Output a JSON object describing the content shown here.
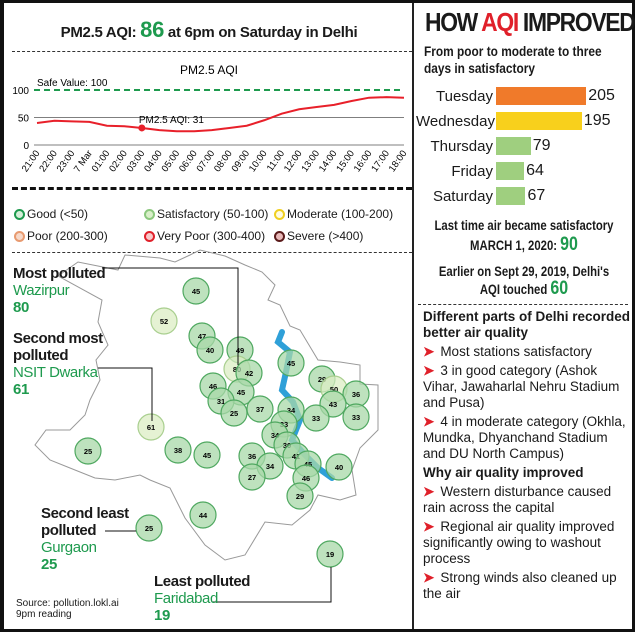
{
  "headline": {
    "prefix": "PM2.5 AQI:",
    "value": "86",
    "suffix": "at 6pm on Saturday in Delhi"
  },
  "chart_data": [
    {
      "type": "line",
      "title": "PM2.5 AQI",
      "ylim": [
        0,
        100
      ],
      "yticks": [
        "0",
        "50",
        "100"
      ],
      "x": [
        "21:00",
        "22:00",
        "23:00",
        "7 Mar",
        "01:00",
        "02:00",
        "03:00",
        "04:00",
        "05:00",
        "06:00",
        "07:00",
        "08:00",
        "09:00",
        "10:00",
        "11:00",
        "12:00",
        "13:00",
        "14:00",
        "15:00",
        "16:00",
        "17:00",
        "18:00"
      ],
      "series": [
        {
          "name": "PM2.5 AQI",
          "values": [
            40,
            44,
            43,
            42,
            35,
            34,
            31,
            27,
            25,
            25,
            27,
            31,
            35,
            45,
            57,
            65,
            69,
            73,
            80,
            86,
            87,
            86
          ],
          "color": "#e8202a"
        }
      ],
      "reference": {
        "label": "Safe Value: 100",
        "value": 100,
        "color": "#1e9a4e"
      },
      "annotation": {
        "label": "PM2.5 AQI: 31",
        "index": 6
      }
    },
    {
      "type": "bar",
      "title": "HOW AQI IMPROVED",
      "categories": [
        "Tuesday",
        "Wednesday",
        "Thursday",
        "Friday",
        "Saturday"
      ],
      "values": [
        205,
        195,
        79,
        64,
        67
      ],
      "colors": [
        "#f07a2a",
        "#f8d01c",
        "#9fcf7f",
        "#9fcf7f",
        "#9fcf7f"
      ]
    }
  ],
  "legend": [
    {
      "label": "Good (<50)",
      "fill": "#d6efd9",
      "stroke": "#1e9a4e"
    },
    {
      "label": "Satisfactory (50-100)",
      "fill": "#d9efc9",
      "stroke": "#8cc87e"
    },
    {
      "label": "Moderate (100-200)",
      "fill": "#fffbe0",
      "stroke": "#f0d020"
    },
    {
      "label": "Poor (200-300)",
      "fill": "#f6d8c8",
      "stroke": "#e89a70"
    },
    {
      "label": "Very Poor (300-400)",
      "fill": "#f8c8c8",
      "stroke": "#e0202a"
    },
    {
      "label": "Severe (>400)",
      "fill": "#e8b8b8",
      "stroke": "#5a1a1a"
    }
  ],
  "map": {
    "stations": [
      45,
      52,
      47,
      40,
      49,
      80,
      42,
      46,
      45,
      31,
      25,
      37,
      45,
      29,
      50,
      36,
      43,
      33,
      34,
      33,
      33,
      34,
      30,
      41,
      36,
      34,
      27,
      45,
      46,
      29,
      40,
      61,
      25,
      38,
      45,
      44,
      25,
      19
    ],
    "callouts": [
      {
        "heading": "Most polluted",
        "name": "Wazirpur",
        "value": "80"
      },
      {
        "heading": "Second most polluted",
        "name": "NSIT Dwarka",
        "value": "61"
      },
      {
        "heading": "Second least polluted",
        "name": "Gurgaon",
        "value": "25"
      },
      {
        "heading": "Least polluted",
        "name": "Faridabad",
        "value": "19"
      }
    ],
    "source": "Source: pollution.lokl.ai",
    "reading": "9pm reading"
  },
  "right": {
    "heading_a": "HOW ",
    "heading_b": "AQI",
    "heading_c": " IMPROVED",
    "heading_accent": "#e0202a",
    "subtitle": "From poor to moderate to three days in satisfactory",
    "last_time": "Last time air became satisfactory",
    "last_date": "MARCH 1, 2020:",
    "last_value": "90",
    "earlier": "Earlier on Sept 29, 2019, Delhi's",
    "earlier2": "AQI touched",
    "earlier_value": "60",
    "parts_heading": "Different parts of Delhi recorded better air quality",
    "parts": [
      "Most stations satisfactory",
      "3 in good category (Ashok Vihar, Jawaharlal Nehru Stadium and Pusa)",
      "4 in moderate category (Okhla, Mundka, Dhyanchand Stadium and DU North Campus)"
    ],
    "why_heading": "Why air quality improved",
    "why": [
      "Western disturbance caused rain across the capital",
      "Regional air quality improved significantly owing to washout process",
      "Strong winds also cleaned up the air"
    ]
  }
}
